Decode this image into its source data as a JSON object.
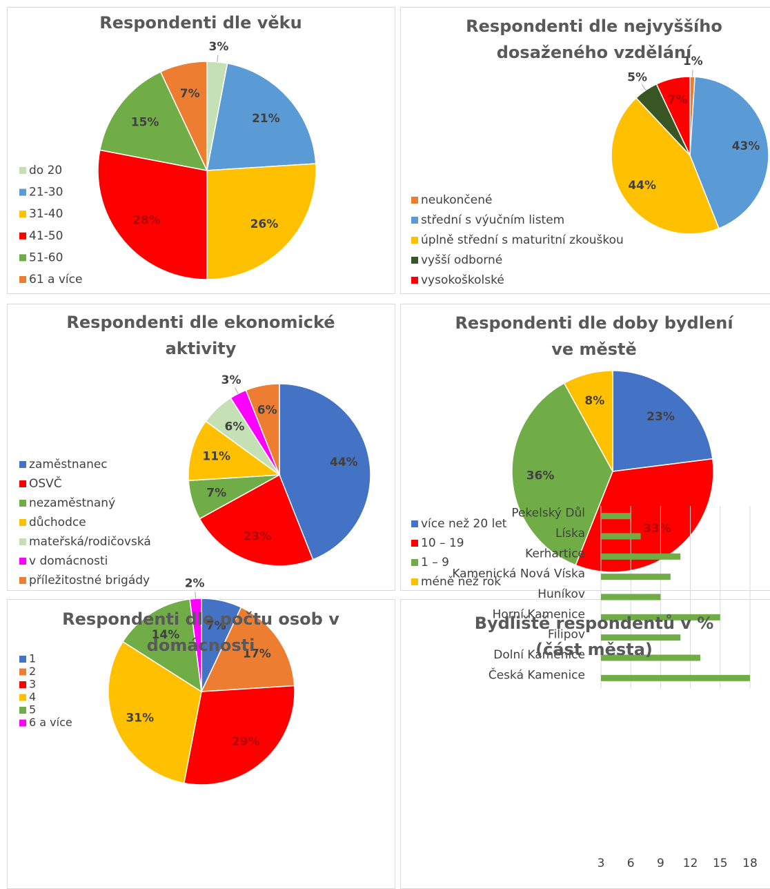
{
  "chart_data": [
    {
      "type": "pie",
      "title": "Respondenti dle věku",
      "categories": [
        "do 20",
        "21-30",
        "31-40",
        "41-50",
        "51-60",
        "61 a více"
      ],
      "values": [
        3,
        21,
        26,
        28,
        15,
        7
      ],
      "value_labels": [
        "3%",
        "21%",
        "26%",
        "28%",
        "15%",
        "7%"
      ],
      "colors": [
        "#c5e0b4",
        "#5b9bd5",
        "#ffc000",
        "#ff0000",
        "#70ad47",
        "#ed7d31"
      ]
    },
    {
      "type": "pie",
      "title": "Respondenti dle nejvyššího dosaženého vzdělání",
      "categories": [
        "neukončené",
        "střední s výučním listem",
        "úplně střední s maturitní zkouškou",
        "vyšší odborné",
        "vysokoškolské"
      ],
      "values": [
        1,
        43,
        44,
        5,
        7
      ],
      "value_labels": [
        "1%",
        "43%",
        "44%",
        "5%",
        "7%"
      ],
      "colors": [
        "#ed7d31",
        "#5b9bd5",
        "#ffc000",
        "#375623",
        "#ff0000"
      ]
    },
    {
      "type": "pie",
      "title": "Respondenti dle ekonomické aktivity",
      "categories": [
        "zaměstnanec",
        "OSVČ",
        "nezaměstnaný",
        "důchodce",
        "mateřská/rodičovská",
        "v domácnosti",
        "příležitostné brigády"
      ],
      "values": [
        44,
        23,
        7,
        11,
        6,
        3,
        6
      ],
      "value_labels": [
        "44%",
        "23%",
        "7%",
        "11%",
        "6%",
        "3%",
        "6%"
      ],
      "colors": [
        "#4472c4",
        "#ff0000",
        "#70ad47",
        "#ffc000",
        "#c5e0b4",
        "#ff00ff",
        "#ed7d31"
      ]
    },
    {
      "type": "pie",
      "title": "Respondenti dle doby bydlení ve městě",
      "categories": [
        "více než 20 let",
        "10 – 19",
        "1 – 9",
        "méně než rok"
      ],
      "values": [
        23,
        33,
        36,
        8
      ],
      "value_labels": [
        "23%",
        "33%",
        "36%",
        "8%"
      ],
      "colors": [
        "#4472c4",
        "#ff0000",
        "#70ad47",
        "#ffc000"
      ]
    },
    {
      "type": "pie",
      "title": "Respondenti dle počtu osob v domácnosti",
      "categories": [
        "1",
        "2",
        "3",
        "4",
        "5",
        "6 a více"
      ],
      "values": [
        7,
        17,
        29,
        31,
        14,
        2
      ],
      "value_labels": [
        "7%",
        "17%",
        "29%",
        "31%",
        "14%",
        "2%"
      ],
      "colors": [
        "#4472c4",
        "#ed7d31",
        "#ff0000",
        "#ffc000",
        "#70ad47",
        "#ff00ff"
      ]
    },
    {
      "type": "hbar",
      "title": "Bydliště respondentů v % (část města)",
      "categories": [
        "Pekelský Důl",
        "Líska",
        "Kerhartice",
        "Kamenická Nová Víska",
        "Huníkov",
        "Horní Kamenice",
        "Filipov",
        "Dolní Kamenice",
        "Česká Kamenice"
      ],
      "values": [
        6,
        7,
        11,
        10,
        9,
        15,
        11,
        13,
        18
      ],
      "color": "#70ad47",
      "xlim": [
        3,
        18
      ],
      "xticks": [
        3,
        6,
        9,
        12,
        15,
        18
      ],
      "grid": true
    }
  ]
}
